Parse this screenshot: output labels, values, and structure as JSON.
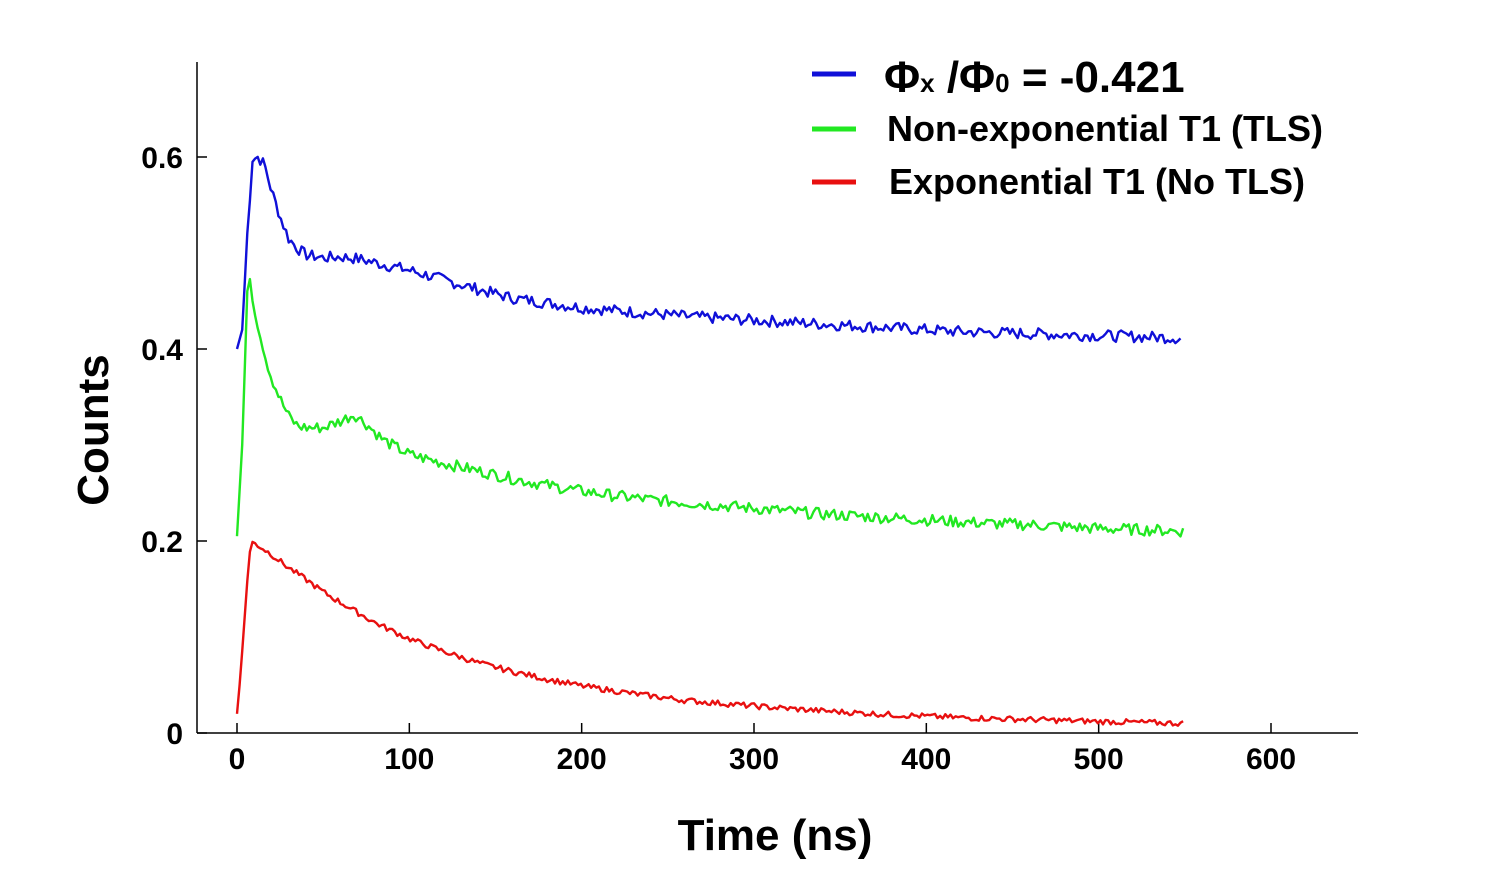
{
  "chart_data": {
    "type": "line",
    "xlabel": "Time (ns)",
    "ylabel": "Counts",
    "xlim": [
      -20,
      650
    ],
    "ylim": [
      0,
      0.7
    ],
    "x_ticks": [
      0,
      100,
      200,
      300,
      400,
      500,
      600
    ],
    "x_tick_labels": [
      "0",
      "100",
      "200",
      "300",
      "400",
      "500",
      "600"
    ],
    "y_ticks": [
      0,
      0.2,
      0.4,
      0.6
    ],
    "y_tick_labels": [
      "0",
      "0.2",
      "0.4",
      "0.6"
    ],
    "grid": false,
    "legend_position": "top-right",
    "series": [
      {
        "name": "Φx /Φ0 = -0.421",
        "legend": {
          "symbol": "Φ",
          "sub1": "x",
          "mid": " /Φ",
          "sub2": "0",
          "tail": " = -0.421"
        },
        "color": "#1010d8",
        "x": [
          0,
          3,
          6,
          9,
          12,
          16,
          20,
          25,
          30,
          35,
          40,
          50,
          60,
          70,
          80,
          100,
          120,
          140,
          160,
          180,
          200,
          220,
          240,
          260,
          280,
          300,
          320,
          340,
          360,
          380,
          400,
          420,
          440,
          460,
          480,
          500,
          520,
          540,
          548
        ],
        "y": [
          0.4,
          0.42,
          0.52,
          0.598,
          0.6,
          0.592,
          0.565,
          0.538,
          0.515,
          0.505,
          0.498,
          0.495,
          0.496,
          0.494,
          0.49,
          0.482,
          0.472,
          0.462,
          0.453,
          0.448,
          0.443,
          0.44,
          0.437,
          0.434,
          0.432,
          0.43,
          0.428,
          0.426,
          0.424,
          0.422,
          0.42,
          0.418,
          0.417,
          0.416,
          0.415,
          0.414,
          0.413,
          0.412,
          0.411
        ]
      },
      {
        "name": "Non-exponential T1 (TLS)",
        "color": "#22e822",
        "x": [
          0,
          3,
          6,
          8,
          10,
          13,
          16,
          20,
          25,
          30,
          35,
          40,
          50,
          60,
          68,
          75,
          85,
          100,
          120,
          140,
          160,
          180,
          200,
          220,
          240,
          260,
          280,
          300,
          320,
          340,
          360,
          380,
          400,
          420,
          440,
          460,
          480,
          500,
          520,
          540,
          550
        ],
        "y": [
          0.205,
          0.3,
          0.46,
          0.47,
          0.44,
          0.42,
          0.395,
          0.37,
          0.348,
          0.33,
          0.32,
          0.318,
          0.318,
          0.325,
          0.332,
          0.322,
          0.305,
          0.29,
          0.281,
          0.273,
          0.265,
          0.258,
          0.252,
          0.247,
          0.243,
          0.24,
          0.237,
          0.234,
          0.231,
          0.228,
          0.226,
          0.224,
          0.222,
          0.22,
          0.218,
          0.217,
          0.215,
          0.213,
          0.212,
          0.211,
          0.21
        ]
      },
      {
        "name": "Exponential T1 (No TLS)",
        "color": "#e81010",
        "x": [
          0,
          2,
          4,
          6,
          8,
          10,
          15,
          20,
          30,
          40,
          50,
          60,
          80,
          100,
          120,
          140,
          160,
          180,
          200,
          230,
          260,
          300,
          340,
          380,
          420,
          460,
          500,
          550
        ],
        "y": [
          0.02,
          0.06,
          0.11,
          0.16,
          0.198,
          0.198,
          0.192,
          0.186,
          0.172,
          0.16,
          0.147,
          0.136,
          0.115,
          0.098,
          0.085,
          0.073,
          0.064,
          0.056,
          0.049,
          0.041,
          0.034,
          0.028,
          0.023,
          0.019,
          0.016,
          0.014,
          0.012,
          0.01
        ]
      }
    ]
  }
}
